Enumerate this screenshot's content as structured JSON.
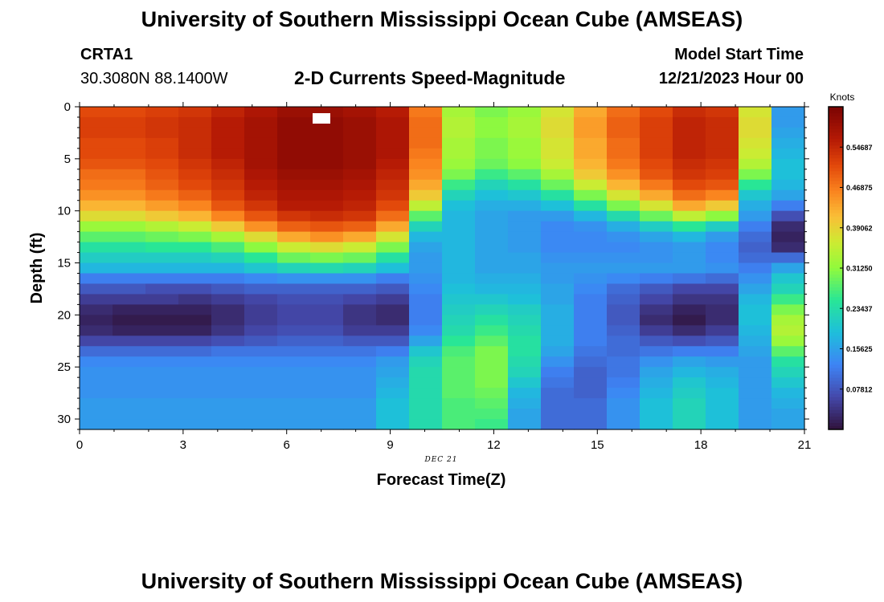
{
  "page": {
    "title_top": "University of Southern Mississippi Ocean Cube (AMSEAS)",
    "title_bottom": "University of Southern Mississippi Ocean Cube (AMSEAS)",
    "station_id": "CRTA1",
    "station_coords": "30.3080N  88.1400W",
    "plot_title": "2-D Currents Speed-Magnitude",
    "model_start_label": "Model Start Time",
    "model_start_value": "12/21/2023 Hour 00",
    "date_label": "DEC 21"
  },
  "chart_data": {
    "type": "heatmap",
    "title": "2-D Currents Speed-Magnitude",
    "xlabel": "Forecast Time(Z)",
    "ylabel": "Depth (ft)",
    "x_ticks": [
      0,
      3,
      6,
      9,
      12,
      15,
      18,
      21
    ],
    "y_ticks": [
      0,
      5,
      10,
      15,
      20,
      25,
      30
    ],
    "xlim": [
      0,
      21
    ],
    "ylim": [
      0,
      31
    ],
    "y_inverted": true,
    "colorbar": {
      "label": "Knots",
      "range": [
        0.0,
        0.625
      ],
      "tick_labels": [
        "0.54687",
        "0.46875",
        "0.39062",
        "0.31250",
        "0.23437",
        "0.15625",
        "0.07812"
      ],
      "tick_values": [
        0.54687,
        0.46875,
        0.39062,
        0.3125,
        0.23437,
        0.15625,
        0.07812
      ]
    },
    "depth_levels_ft": [
      0.5,
      1.5,
      2.5,
      3.5,
      4.5,
      5.5,
      6.5,
      7.5,
      8.5,
      9.5,
      10.5,
      11.5,
      12.5,
      13.5,
      14.5,
      15.5,
      16.5,
      17.5,
      18.5,
      19.5,
      20.5,
      21.5,
      22.5,
      23.5,
      24.5,
      25.5,
      26.5,
      27.5,
      28.5,
      29.5,
      30.5
    ],
    "speed_knots_by_hour": [
      [
        0.51,
        0.52,
        0.52,
        0.51,
        0.51,
        0.5,
        0.48,
        0.47,
        0.45,
        0.42,
        0.38,
        0.32,
        0.28,
        0.24,
        0.21,
        0.18,
        0.12,
        0.08,
        0.05,
        0.03,
        0.02,
        0.03,
        0.06,
        0.1,
        0.13,
        0.14,
        0.14,
        0.14,
        0.15,
        0.15,
        0.15
      ],
      [
        0.51,
        0.52,
        0.52,
        0.51,
        0.51,
        0.5,
        0.48,
        0.47,
        0.45,
        0.42,
        0.38,
        0.32,
        0.28,
        0.24,
        0.21,
        0.18,
        0.12,
        0.08,
        0.05,
        0.02,
        0.01,
        0.02,
        0.06,
        0.1,
        0.13,
        0.14,
        0.14,
        0.14,
        0.15,
        0.15,
        0.15
      ],
      [
        0.52,
        0.53,
        0.53,
        0.52,
        0.52,
        0.51,
        0.5,
        0.49,
        0.47,
        0.44,
        0.4,
        0.34,
        0.29,
        0.25,
        0.21,
        0.18,
        0.12,
        0.07,
        0.05,
        0.02,
        0.01,
        0.02,
        0.06,
        0.1,
        0.13,
        0.14,
        0.14,
        0.14,
        0.15,
        0.15,
        0.15
      ],
      [
        0.53,
        0.54,
        0.54,
        0.54,
        0.54,
        0.53,
        0.52,
        0.51,
        0.49,
        0.46,
        0.42,
        0.36,
        0.3,
        0.25,
        0.21,
        0.18,
        0.12,
        0.07,
        0.04,
        0.02,
        0.01,
        0.02,
        0.06,
        0.1,
        0.13,
        0.14,
        0.14,
        0.14,
        0.15,
        0.15,
        0.15
      ],
      [
        0.55,
        0.56,
        0.56,
        0.56,
        0.56,
        0.55,
        0.54,
        0.53,
        0.52,
        0.5,
        0.46,
        0.4,
        0.33,
        0.27,
        0.22,
        0.18,
        0.12,
        0.08,
        0.05,
        0.03,
        0.03,
        0.04,
        0.07,
        0.11,
        0.13,
        0.14,
        0.14,
        0.14,
        0.15,
        0.15,
        0.15
      ],
      [
        0.57,
        0.58,
        0.58,
        0.58,
        0.58,
        0.58,
        0.57,
        0.56,
        0.55,
        0.53,
        0.5,
        0.45,
        0.38,
        0.31,
        0.25,
        0.2,
        0.13,
        0.09,
        0.06,
        0.05,
        0.05,
        0.06,
        0.08,
        0.11,
        0.13,
        0.14,
        0.14,
        0.14,
        0.15,
        0.15,
        0.15
      ],
      [
        0.59,
        0.6,
        0.6,
        0.6,
        0.6,
        0.6,
        0.59,
        0.58,
        0.57,
        0.56,
        0.53,
        0.49,
        0.43,
        0.36,
        0.29,
        0.22,
        0.14,
        0.09,
        0.07,
        0.06,
        0.06,
        0.07,
        0.09,
        0.11,
        0.13,
        0.14,
        0.14,
        0.14,
        0.15,
        0.15,
        0.15
      ],
      [
        0.59,
        0.6,
        0.6,
        0.6,
        0.6,
        0.6,
        0.59,
        0.58,
        0.57,
        0.56,
        0.54,
        0.5,
        0.45,
        0.38,
        0.3,
        0.23,
        0.14,
        0.09,
        0.07,
        0.06,
        0.06,
        0.07,
        0.09,
        0.11,
        0.13,
        0.14,
        0.14,
        0.14,
        0.15,
        0.15,
        0.15
      ],
      [
        0.58,
        0.59,
        0.59,
        0.59,
        0.59,
        0.59,
        0.58,
        0.57,
        0.56,
        0.55,
        0.53,
        0.49,
        0.43,
        0.36,
        0.29,
        0.22,
        0.14,
        0.09,
        0.06,
        0.04,
        0.04,
        0.05,
        0.08,
        0.11,
        0.13,
        0.14,
        0.14,
        0.14,
        0.15,
        0.15,
        0.15
      ],
      [
        0.56,
        0.57,
        0.57,
        0.57,
        0.57,
        0.56,
        0.55,
        0.54,
        0.53,
        0.51,
        0.48,
        0.43,
        0.37,
        0.3,
        0.24,
        0.19,
        0.12,
        0.08,
        0.05,
        0.03,
        0.03,
        0.05,
        0.08,
        0.12,
        0.15,
        0.16,
        0.17,
        0.18,
        0.19,
        0.19,
        0.19
      ],
      [
        0.47,
        0.48,
        0.48,
        0.48,
        0.47,
        0.46,
        0.45,
        0.43,
        0.4,
        0.35,
        0.28,
        0.22,
        0.18,
        0.16,
        0.15,
        0.15,
        0.14,
        0.13,
        0.12,
        0.12,
        0.12,
        0.13,
        0.16,
        0.2,
        0.22,
        0.23,
        0.23,
        0.23,
        0.23,
        0.23,
        0.23
      ],
      [
        0.33,
        0.34,
        0.34,
        0.33,
        0.33,
        0.32,
        0.3,
        0.26,
        0.22,
        0.19,
        0.18,
        0.18,
        0.18,
        0.18,
        0.18,
        0.18,
        0.18,
        0.19,
        0.2,
        0.21,
        0.22,
        0.23,
        0.25,
        0.27,
        0.28,
        0.28,
        0.28,
        0.28,
        0.27,
        0.27,
        0.27
      ],
      [
        0.3,
        0.31,
        0.31,
        0.3,
        0.3,
        0.29,
        0.26,
        0.22,
        0.19,
        0.17,
        0.16,
        0.16,
        0.16,
        0.16,
        0.16,
        0.16,
        0.17,
        0.18,
        0.2,
        0.22,
        0.24,
        0.26,
        0.28,
        0.3,
        0.3,
        0.3,
        0.3,
        0.29,
        0.28,
        0.27,
        0.26
      ],
      [
        0.32,
        0.33,
        0.33,
        0.32,
        0.32,
        0.31,
        0.28,
        0.24,
        0.2,
        0.17,
        0.15,
        0.15,
        0.15,
        0.15,
        0.16,
        0.16,
        0.17,
        0.18,
        0.19,
        0.21,
        0.22,
        0.23,
        0.24,
        0.24,
        0.23,
        0.22,
        0.2,
        0.18,
        0.17,
        0.16,
        0.16
      ],
      [
        0.37,
        0.38,
        0.38,
        0.37,
        0.37,
        0.36,
        0.33,
        0.29,
        0.24,
        0.19,
        0.15,
        0.13,
        0.13,
        0.13,
        0.14,
        0.15,
        0.15,
        0.16,
        0.16,
        0.17,
        0.17,
        0.17,
        0.17,
        0.16,
        0.14,
        0.12,
        0.11,
        0.1,
        0.1,
        0.1,
        0.1
      ],
      [
        0.43,
        0.44,
        0.44,
        0.43,
        0.43,
        0.42,
        0.4,
        0.36,
        0.3,
        0.24,
        0.18,
        0.14,
        0.13,
        0.13,
        0.14,
        0.15,
        0.14,
        0.13,
        0.12,
        0.12,
        0.12,
        0.12,
        0.12,
        0.11,
        0.1,
        0.09,
        0.09,
        0.09,
        0.1,
        0.1,
        0.1
      ],
      [
        0.48,
        0.49,
        0.49,
        0.48,
        0.48,
        0.47,
        0.45,
        0.42,
        0.37,
        0.3,
        0.23,
        0.17,
        0.14,
        0.13,
        0.14,
        0.15,
        0.13,
        0.1,
        0.09,
        0.08,
        0.08,
        0.09,
        0.1,
        0.1,
        0.11,
        0.11,
        0.12,
        0.13,
        0.14,
        0.14,
        0.14
      ],
      [
        0.51,
        0.52,
        0.52,
        0.52,
        0.52,
        0.51,
        0.5,
        0.47,
        0.43,
        0.37,
        0.29,
        0.21,
        0.16,
        0.14,
        0.14,
        0.15,
        0.12,
        0.08,
        0.06,
        0.04,
        0.03,
        0.05,
        0.08,
        0.11,
        0.14,
        0.16,
        0.17,
        0.18,
        0.19,
        0.19,
        0.19
      ],
      [
        0.54,
        0.55,
        0.55,
        0.55,
        0.55,
        0.54,
        0.53,
        0.51,
        0.48,
        0.43,
        0.35,
        0.25,
        0.18,
        0.15,
        0.15,
        0.15,
        0.11,
        0.06,
        0.04,
        0.02,
        0.01,
        0.03,
        0.07,
        0.12,
        0.16,
        0.18,
        0.2,
        0.21,
        0.22,
        0.22,
        0.22
      ],
      [
        0.53,
        0.54,
        0.54,
        0.54,
        0.54,
        0.53,
        0.52,
        0.5,
        0.46,
        0.4,
        0.31,
        0.21,
        0.15,
        0.13,
        0.13,
        0.14,
        0.1,
        0.06,
        0.04,
        0.03,
        0.03,
        0.05,
        0.08,
        0.12,
        0.15,
        0.17,
        0.18,
        0.19,
        0.19,
        0.19,
        0.19
      ],
      [
        0.37,
        0.38,
        0.38,
        0.37,
        0.36,
        0.34,
        0.3,
        0.25,
        0.2,
        0.17,
        0.15,
        0.12,
        0.1,
        0.09,
        0.1,
        0.12,
        0.14,
        0.16,
        0.18,
        0.19,
        0.19,
        0.18,
        0.17,
        0.16,
        0.15,
        0.15,
        0.15,
        0.15,
        0.15,
        0.15,
        0.15
      ],
      [
        0.15,
        0.15,
        0.16,
        0.17,
        0.18,
        0.19,
        0.19,
        0.18,
        0.16,
        0.12,
        0.07,
        0.03,
        0.02,
        0.03,
        0.1,
        0.16,
        0.2,
        0.22,
        0.26,
        0.3,
        0.33,
        0.34,
        0.32,
        0.28,
        0.24,
        0.22,
        0.2,
        0.18,
        0.17,
        0.16,
        0.16
      ]
    ]
  }
}
